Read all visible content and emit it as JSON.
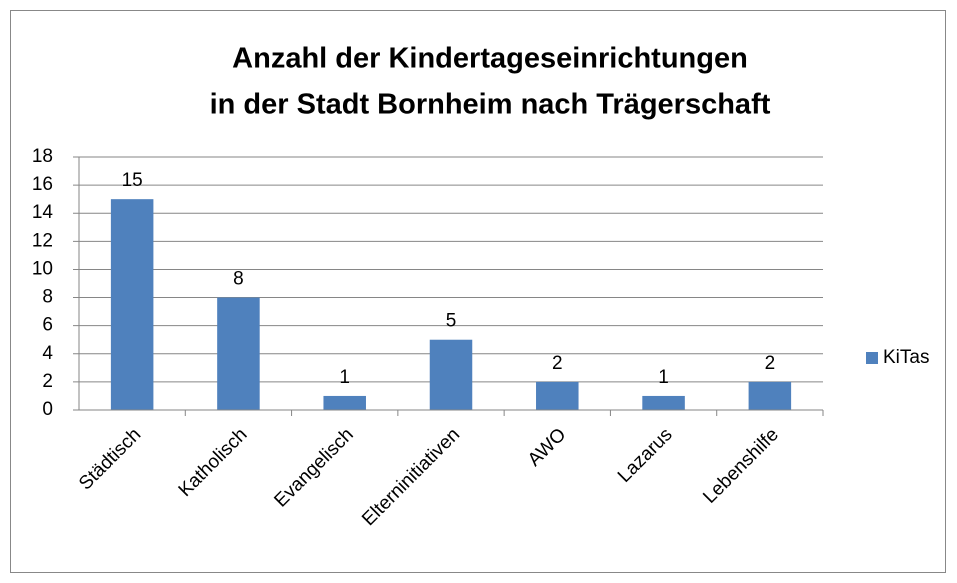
{
  "chart_data": {
    "type": "bar",
    "title": [
      "Anzahl der Kindertageseinrichtungen",
      "in der Stadt Bornheim nach Trägerschaft"
    ],
    "categories": [
      "Städtisch",
      "Katholisch",
      "Evangelisch",
      "Elterninitiativen",
      "AWO",
      "Lazarus",
      "Lebenshilfe"
    ],
    "series": [
      {
        "name": "KiTas",
        "color": "#4f81bd",
        "values": [
          15,
          8,
          1,
          5,
          2,
          1,
          2
        ]
      }
    ],
    "ylim": [
      0,
      18
    ],
    "yticks": [
      0,
      2,
      4,
      6,
      8,
      10,
      12,
      14,
      16,
      18
    ],
    "grid": true,
    "legend": "right"
  }
}
